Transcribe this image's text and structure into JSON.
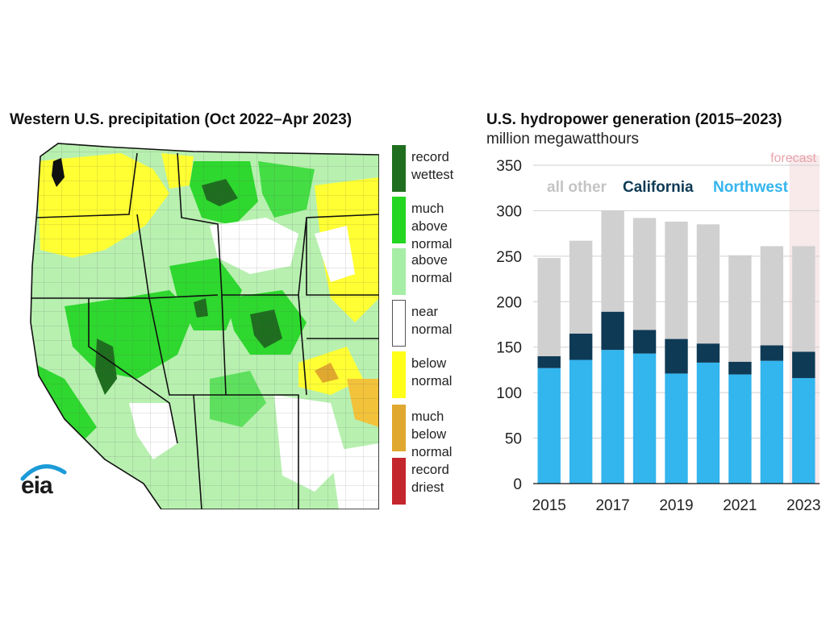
{
  "map": {
    "title": "Western U.S. precipitation (Oct 2022–Apr 2023)",
    "legend": [
      {
        "label": "record wettest",
        "color": "#1f6e1f"
      },
      {
        "label": "much above normal",
        "color": "#22d622"
      },
      {
        "label": "above normal",
        "color": "#a6eda6"
      },
      {
        "label": "near normal",
        "color": "#ffffff"
      },
      {
        "label": "below normal",
        "color": "#ffff1a"
      },
      {
        "label": "much below normal",
        "color": "#e0a82e"
      },
      {
        "label": "record driest",
        "color": "#c4262e"
      }
    ],
    "logo_text": "eia"
  },
  "chart": {
    "title": "U.S. hydropower generation (2015–2023)",
    "subtitle": "million megawatthours",
    "forecast_label": "forecast",
    "series_labels": {
      "all_other": "all other",
      "california": "California",
      "northwest": "Northwest"
    }
  },
  "chart_data": {
    "type": "bar",
    "stacked": true,
    "categories": [
      "2015",
      "2016",
      "2017",
      "2018",
      "2019",
      "2020",
      "2021",
      "2022",
      "2023"
    ],
    "x_tick_labels": [
      "2015",
      "",
      "2017",
      "",
      "2019",
      "",
      "2021",
      "",
      "2023"
    ],
    "series": [
      {
        "name": "Northwest",
        "color": "#33b5ee",
        "values": [
          127,
          136,
          147,
          143,
          121,
          133,
          120,
          135,
          116
        ]
      },
      {
        "name": "California",
        "color": "#0e3a55",
        "values": [
          13,
          29,
          42,
          26,
          38,
          21,
          14,
          17,
          29
        ]
      },
      {
        "name": "all other",
        "color": "#d0d0d0",
        "values": [
          108,
          102,
          111,
          123,
          129,
          131,
          117,
          109,
          116
        ]
      }
    ],
    "totals": [
      248,
      267,
      300,
      292,
      288,
      285,
      251,
      261,
      261
    ],
    "ylim": [
      0,
      350
    ],
    "yticks": [
      0,
      50,
      100,
      150,
      200,
      250,
      300,
      350
    ],
    "forecast_categories": [
      "2023"
    ],
    "grid": true
  }
}
